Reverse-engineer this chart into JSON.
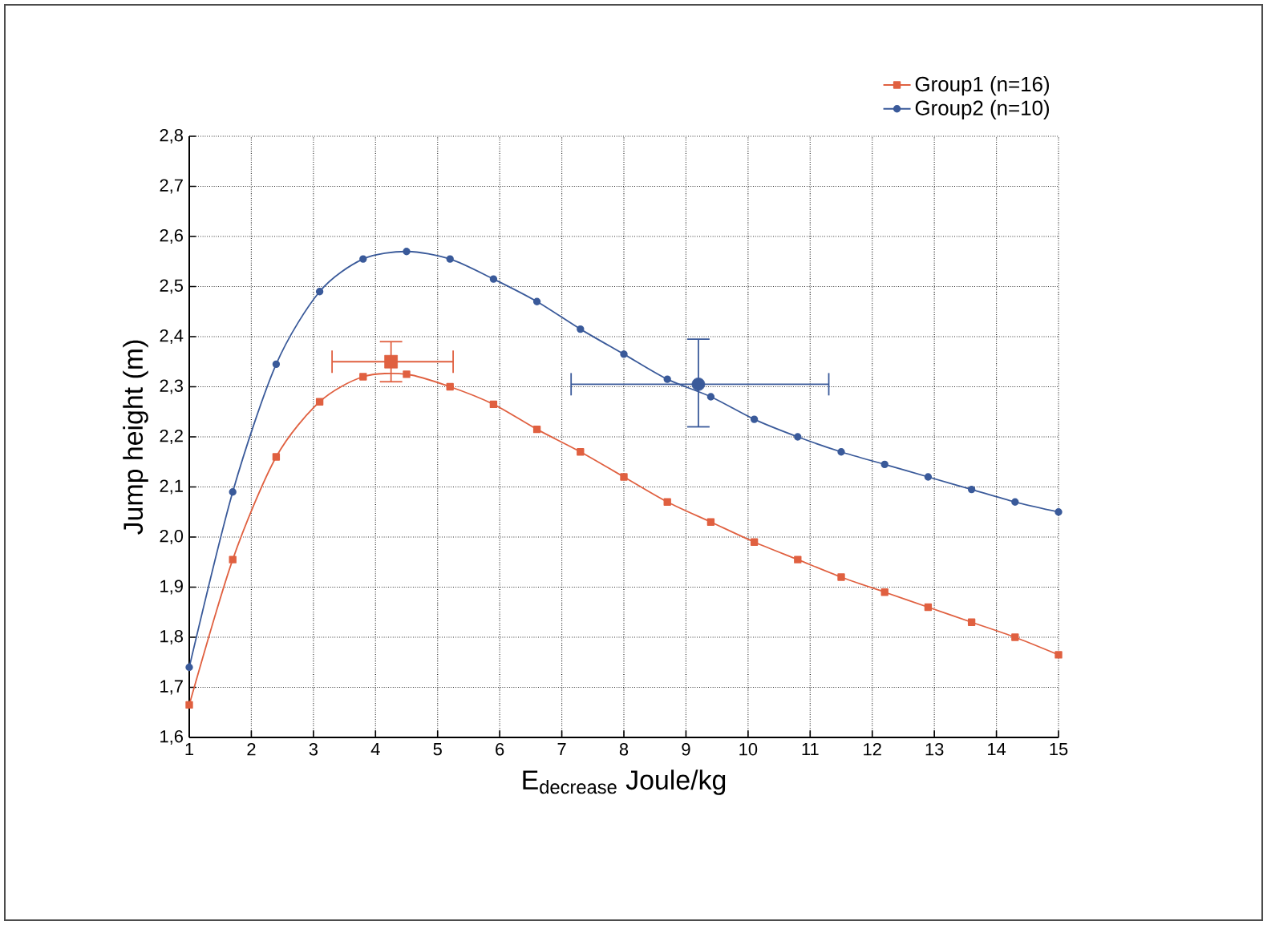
{
  "chart_data": {
    "type": "line",
    "xlabel": "E$_{decrease}$ Joule/kg",
    "ylabel": "Jump height (m)",
    "xlim": [
      1,
      15
    ],
    "xticks": [
      1,
      2,
      3,
      4,
      5,
      6,
      7,
      8,
      9,
      10,
      11,
      12,
      13,
      14,
      15
    ],
    "ylim": [
      1.6,
      2.8
    ],
    "yticks": [
      {
        "value": 1.6,
        "label": "1,6"
      },
      {
        "value": 1.7,
        "label": "1,7"
      },
      {
        "value": 1.8,
        "label": "1,8"
      },
      {
        "value": 1.9,
        "label": "1,9"
      },
      {
        "value": 2.0,
        "label": "2,0"
      },
      {
        "value": 2.1,
        "label": "2,1"
      },
      {
        "value": 2.2,
        "label": "2,2"
      },
      {
        "value": 2.3,
        "label": "2,3"
      },
      {
        "value": 2.4,
        "label": "2,4"
      },
      {
        "value": 2.5,
        "label": "2,5"
      },
      {
        "value": 2.6,
        "label": "2,6"
      },
      {
        "value": 2.7,
        "label": "2,7"
      },
      {
        "value": 2.8,
        "label": "2,8"
      }
    ],
    "grid": true,
    "legend": "top right",
    "x": [
      1,
      1.7,
      2.4,
      3.1,
      3.8,
      4.5,
      5.2,
      5.9,
      6.6,
      7.3,
      8.0,
      8.7,
      9.4,
      10.1,
      10.8,
      11.5,
      12.2,
      12.9,
      13.6,
      14.3,
      15.0
    ],
    "series": [
      {
        "name": "Group1 (n=16)",
        "color": "#e06040",
        "marker": "square",
        "values": [
          1.665,
          1.955,
          2.16,
          2.27,
          2.32,
          2.325,
          2.3,
          2.265,
          2.215,
          2.17,
          2.12,
          2.07,
          2.03,
          1.99,
          1.955,
          1.92,
          1.89,
          1.86,
          1.83,
          1.8,
          1.765
        ]
      },
      {
        "name": "Group2 (n=10)",
        "color": "#3a5a9a",
        "marker": "circle",
        "values": [
          1.74,
          2.09,
          2.345,
          2.49,
          2.555,
          2.57,
          2.555,
          2.515,
          2.47,
          2.415,
          2.365,
          2.315,
          2.28,
          2.235,
          2.2,
          2.17,
          2.145,
          2.12,
          2.095,
          2.07,
          2.05
        ]
      },
      {
        "type": "scatter",
        "color": "#e06040",
        "marker": "square",
        "x": [
          4.25
        ],
        "values": [
          2.35
        ],
        "errors": [
          [
            2.31,
            2.39
          ]
        ],
        "xerrors": [
          [
            3.3,
            5.25
          ]
        ]
      },
      {
        "type": "scatter",
        "color": "#3a5a9a",
        "marker": "circle",
        "x": [
          9.2
        ],
        "values": [
          2.305
        ],
        "errors": [
          [
            2.22,
            2.395
          ]
        ],
        "xerrors": [
          [
            7.15,
            11.3
          ]
        ]
      }
    ]
  }
}
